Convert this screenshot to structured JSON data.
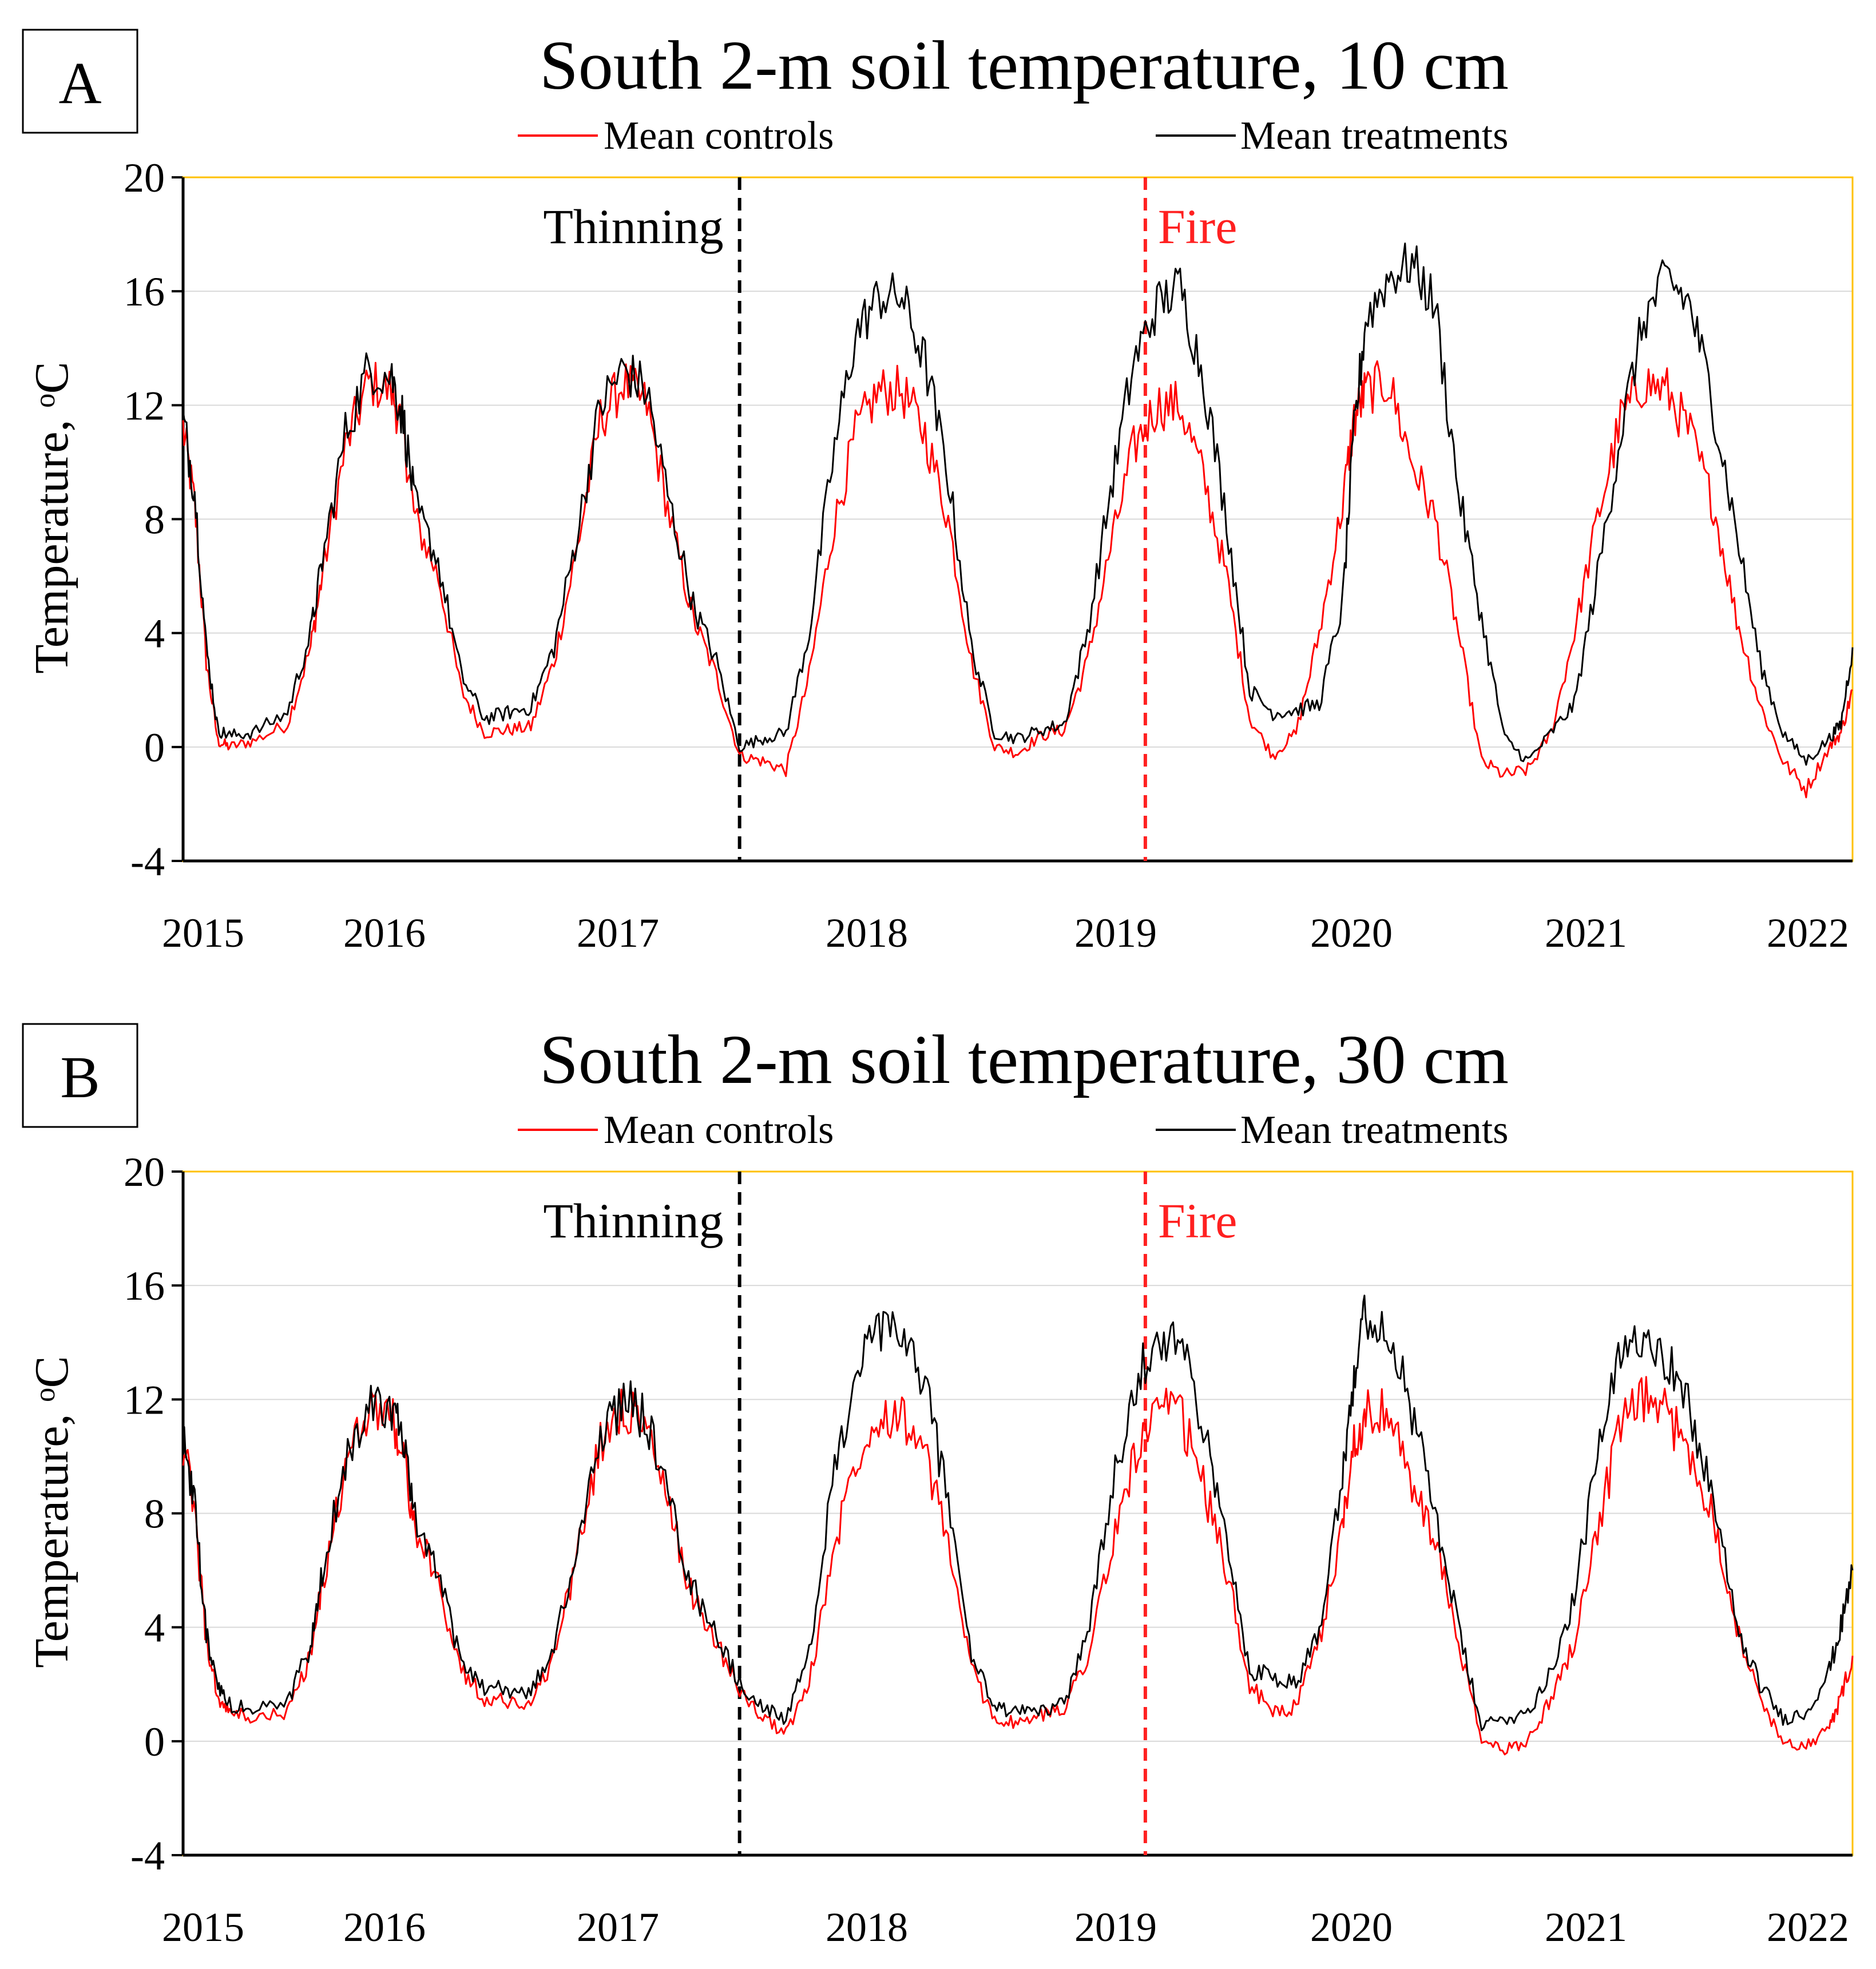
{
  "colors": {
    "controls": "#ff0000",
    "treatments": "#000000",
    "thinning_line": "#000000",
    "fire_line": "#ff2020",
    "frame": "#ffc000",
    "grid": "#d9d9d9"
  },
  "chart_data": [
    {
      "panel": "A",
      "type": "line",
      "title": "South 2-m soil temperature, 10 cm",
      "ylabel": "Temperature, ᵒC",
      "xlabel": "",
      "ylim": [
        -4,
        20
      ],
      "yticks": [
        "20",
        "16",
        "12",
        "8",
        "4",
        "0",
        "-4"
      ],
      "xticks": [
        "2015",
        "2016",
        "2017",
        "2018",
        "2019",
        "2020",
        "2021",
        "2022"
      ],
      "legend": [
        "Mean controls",
        "Mean treatments"
      ],
      "events": [
        {
          "label": "Thinning",
          "year": 2017.4
        },
        {
          "label": "Fire",
          "year": 2019.15
        }
      ],
      "series": [
        {
          "name": "Mean controls",
          "years": [
            2015.0,
            2015.05,
            2015.1,
            2015.15,
            2015.2,
            2015.3,
            2015.45,
            2015.55,
            2015.6,
            2015.7,
            2015.8,
            2015.9,
            2015.95,
            2016.0,
            2016.1,
            2016.2,
            2016.3,
            2016.4,
            2016.5,
            2016.6,
            2016.7,
            2016.8,
            2016.9,
            2017.0,
            2017.1,
            2017.2,
            2017.3,
            2017.4,
            2017.5,
            2017.6,
            2017.7,
            2017.8,
            2017.9,
            2018.0,
            2018.1,
            2018.2,
            2018.3,
            2018.4,
            2018.5,
            2018.6,
            2018.7,
            2018.8,
            2018.9,
            2019.0,
            2019.1,
            2019.2,
            2019.3,
            2019.4,
            2019.5,
            2019.6,
            2019.7,
            2019.8,
            2019.9,
            2020.0,
            2020.05,
            2020.1,
            2020.2,
            2020.3,
            2020.4,
            2020.5,
            2020.6,
            2020.7,
            2020.8,
            2020.9,
            2021.0,
            2021.1,
            2021.2,
            2021.3,
            2021.4,
            2021.5,
            2021.6,
            2021.7,
            2021.8,
            2021.9,
            2022.0,
            2022.1,
            2022.15,
            2022.2
          ],
          "values": [
            11.2,
            8.5,
            3.0,
            0.2,
            0.0,
            0.2,
            0.8,
            3.5,
            6.0,
            10.5,
            12.8,
            12.5,
            11.0,
            8.0,
            6.0,
            2.0,
            0.5,
            0.6,
            0.7,
            3.0,
            7.0,
            11.5,
            12.8,
            12.0,
            8.0,
            4.5,
            2.5,
            -0.3,
            -0.5,
            -0.8,
            2.5,
            7.5,
            11.0,
            12.5,
            12.5,
            11.0,
            8.0,
            3.0,
            0.0,
            -0.2,
            0.4,
            0.6,
            3.0,
            7.0,
            10.5,
            12.0,
            12.0,
            9.5,
            6.0,
            1.0,
            -0.3,
            0.5,
            4.0,
            8.5,
            11.5,
            12.5,
            12.8,
            10.0,
            8.0,
            4.0,
            -0.5,
            -1.0,
            -0.8,
            0.5,
            4.0,
            8.0,
            11.5,
            12.8,
            12.5,
            11.0,
            8.5,
            4.5,
            1.5,
            -0.5,
            -1.5,
            0.0,
            0.5,
            2.0
          ]
        },
        {
          "name": "Mean treatments",
          "years": [
            2015.0,
            2015.05,
            2015.1,
            2015.15,
            2015.2,
            2015.3,
            2015.45,
            2015.55,
            2015.6,
            2015.7,
            2015.8,
            2015.9,
            2015.95,
            2016.0,
            2016.1,
            2016.2,
            2016.3,
            2016.4,
            2016.5,
            2016.6,
            2016.7,
            2016.8,
            2016.9,
            2017.0,
            2017.1,
            2017.2,
            2017.3,
            2017.4,
            2017.5,
            2017.6,
            2017.7,
            2017.8,
            2017.9,
            2018.0,
            2018.1,
            2018.2,
            2018.3,
            2018.4,
            2018.5,
            2018.6,
            2018.7,
            2018.8,
            2018.9,
            2019.0,
            2019.1,
            2019.2,
            2019.3,
            2019.4,
            2019.5,
            2019.6,
            2019.7,
            2019.8,
            2019.9,
            2020.0,
            2020.05,
            2020.1,
            2020.2,
            2020.3,
            2020.4,
            2020.5,
            2020.6,
            2020.7,
            2020.8,
            2020.9,
            2021.0,
            2021.1,
            2021.2,
            2021.3,
            2021.4,
            2021.5,
            2021.6,
            2021.7,
            2021.8,
            2021.9,
            2022.0,
            2022.1,
            2022.15,
            2022.2
          ],
          "values": [
            11.5,
            9.0,
            3.5,
            0.6,
            0.4,
            0.5,
            1.2,
            4.0,
            6.5,
            11.0,
            13.3,
            13.0,
            11.5,
            8.5,
            6.5,
            2.5,
            1.0,
            1.2,
            1.4,
            3.5,
            7.5,
            12.0,
            13.3,
            12.5,
            8.5,
            5.0,
            3.0,
            0.0,
            0.3,
            0.5,
            4.0,
            10.0,
            14.5,
            15.8,
            15.8,
            13.5,
            9.5,
            3.5,
            0.5,
            0.3,
            0.6,
            0.8,
            4.0,
            9.0,
            13.5,
            15.5,
            16.2,
            13.0,
            8.0,
            2.0,
            1.2,
            1.3,
            1.5,
            5.0,
            11.0,
            15.0,
            16.5,
            17.0,
            15.5,
            9.0,
            4.5,
            0.3,
            -0.5,
            0.5,
            1.5,
            6.0,
            11.0,
            15.0,
            16.5,
            15.5,
            12.0,
            7.5,
            3.0,
            0.5,
            -0.5,
            0.3,
            0.8,
            3.5
          ]
        }
      ]
    },
    {
      "panel": "B",
      "type": "line",
      "title": "South 2-m soil temperature, 30 cm",
      "ylabel": "Temperature, ᵒC",
      "xlabel": "",
      "ylim": [
        -4,
        20
      ],
      "yticks": [
        "20",
        "16",
        "12",
        "8",
        "4",
        "0",
        "-4"
      ],
      "xticks": [
        "2015",
        "2016",
        "2017",
        "2018",
        "2019",
        "2020",
        "2021",
        "2022"
      ],
      "legend": [
        "Mean controls",
        "Mean treatments"
      ],
      "events": [
        {
          "label": "Thinning",
          "year": 2017.4
        },
        {
          "label": "Fire",
          "year": 2019.15
        }
      ],
      "series": [
        {
          "name": "Mean controls",
          "years": [
            2015.0,
            2015.05,
            2015.1,
            2015.15,
            2015.2,
            2015.3,
            2015.45,
            2015.55,
            2015.6,
            2015.7,
            2015.8,
            2015.9,
            2015.95,
            2016.0,
            2016.1,
            2016.2,
            2016.3,
            2016.4,
            2016.5,
            2016.6,
            2016.7,
            2016.8,
            2016.9,
            2017.0,
            2017.1,
            2017.2,
            2017.3,
            2017.4,
            2017.5,
            2017.6,
            2017.7,
            2017.8,
            2017.9,
            2018.0,
            2018.1,
            2018.2,
            2018.3,
            2018.4,
            2018.5,
            2018.6,
            2018.7,
            2018.8,
            2018.9,
            2019.0,
            2019.1,
            2019.2,
            2019.3,
            2019.4,
            2019.5,
            2019.6,
            2019.7,
            2019.8,
            2019.9,
            2020.0,
            2020.05,
            2020.1,
            2020.2,
            2020.3,
            2020.4,
            2020.5,
            2020.6,
            2020.7,
            2020.8,
            2020.9,
            2021.0,
            2021.1,
            2021.2,
            2021.3,
            2021.4,
            2021.5,
            2021.6,
            2021.7,
            2021.8,
            2021.9,
            2022.0,
            2022.1,
            2022.15,
            2022.2
          ],
          "values": [
            10.5,
            8.0,
            3.5,
            1.5,
            1.0,
            0.8,
            1.0,
            3.0,
            5.5,
            9.5,
            11.8,
            11.5,
            10.0,
            7.5,
            5.5,
            2.5,
            1.5,
            1.4,
            1.3,
            3.0,
            6.5,
            10.5,
            11.8,
            11.0,
            8.0,
            5.0,
            3.5,
            1.8,
            0.8,
            0.3,
            2.0,
            6.5,
            10.0,
            11.5,
            11.5,
            10.0,
            7.0,
            2.5,
            0.8,
            0.6,
            0.9,
            1.2,
            3.0,
            6.5,
            10.0,
            11.5,
            11.5,
            9.0,
            6.0,
            2.0,
            1.0,
            1.2,
            3.5,
            7.5,
            10.5,
            11.5,
            11.5,
            9.0,
            7.0,
            3.5,
            0.0,
            -0.3,
            0.0,
            1.5,
            3.5,
            7.5,
            11.0,
            12.0,
            11.5,
            10.0,
            8.0,
            4.0,
            1.5,
            0.0,
            -0.2,
            0.5,
            1.5,
            3.0
          ]
        },
        {
          "name": "Mean treatments",
          "years": [
            2015.0,
            2015.05,
            2015.1,
            2015.15,
            2015.2,
            2015.3,
            2015.45,
            2015.55,
            2015.6,
            2015.7,
            2015.8,
            2015.9,
            2015.95,
            2016.0,
            2016.1,
            2016.2,
            2016.3,
            2016.4,
            2016.5,
            2016.6,
            2016.7,
            2016.8,
            2016.9,
            2017.0,
            2017.1,
            2017.2,
            2017.3,
            2017.4,
            2017.5,
            2017.6,
            2017.7,
            2017.8,
            2017.9,
            2018.0,
            2018.1,
            2018.2,
            2018.3,
            2018.4,
            2018.5,
            2018.6,
            2018.7,
            2018.8,
            2018.9,
            2019.0,
            2019.1,
            2019.2,
            2019.3,
            2019.4,
            2019.5,
            2019.6,
            2019.7,
            2019.8,
            2019.9,
            2020.0,
            2020.05,
            2020.1,
            2020.2,
            2020.3,
            2020.4,
            2020.5,
            2020.6,
            2020.7,
            2020.8,
            2020.9,
            2021.0,
            2021.1,
            2021.2,
            2021.3,
            2021.4,
            2021.5,
            2021.6,
            2021.7,
            2021.8,
            2021.9,
            2022.0,
            2022.1,
            2022.15,
            2022.2
          ],
          "values": [
            10.5,
            8.2,
            3.8,
            1.8,
            1.3,
            1.1,
            1.4,
            3.3,
            5.8,
            9.8,
            12.0,
            11.8,
            10.3,
            7.8,
            5.8,
            2.8,
            1.9,
            1.8,
            1.7,
            3.3,
            6.8,
            10.8,
            12.0,
            11.3,
            8.3,
            5.3,
            3.8,
            2.0,
            1.2,
            0.8,
            3.0,
            9.0,
            13.0,
            14.3,
            14.3,
            12.5,
            8.5,
            3.0,
            1.2,
            1.0,
            1.1,
            1.3,
            3.8,
            8.5,
            12.5,
            14.3,
            14.0,
            11.0,
            7.0,
            2.5,
            2.3,
            2.0,
            4.0,
            9.5,
            13.0,
            15.0,
            14.5,
            11.5,
            8.0,
            4.0,
            0.5,
            0.8,
            1.0,
            2.5,
            5.0,
            10.0,
            13.5,
            14.5,
            13.5,
            11.5,
            8.5,
            4.0,
            2.0,
            0.8,
            1.0,
            2.5,
            4.0,
            6.0
          ]
        }
      ]
    }
  ]
}
